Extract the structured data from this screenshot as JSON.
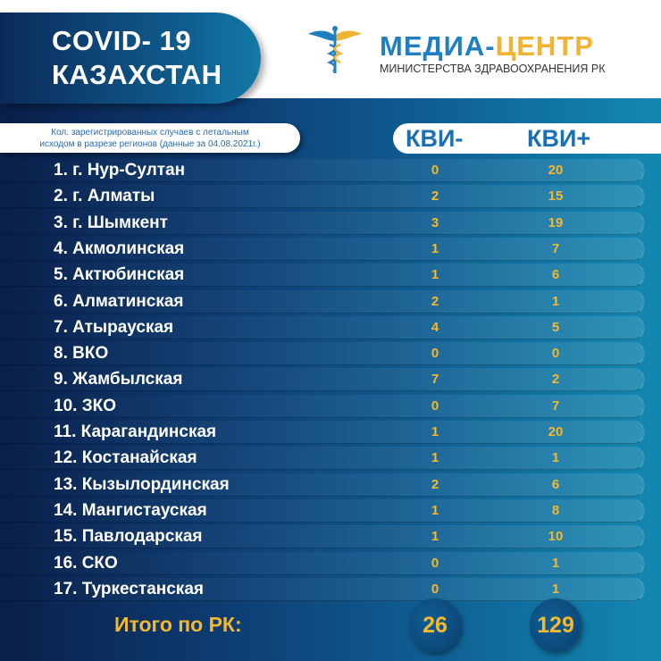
{
  "header": {
    "title_line1": "COVID- 19",
    "title_line2": "КАЗАХСТАН",
    "brand_part1": "МЕДИА-",
    "brand_part2": "ЦЕНТР",
    "ministry": "МИНИСТЕРСТВА ЗДРАВООХРАНЕНИЯ РК",
    "logo_icon": "caduceus-icon"
  },
  "subtitle_line1": "Кол. зарегистрированных случаев с летальным",
  "subtitle_line2": "исходом в разрезе регионов  (данные за 04.08.2021г.)",
  "columns": [
    "КВИ-",
    "КВИ+"
  ],
  "rows": [
    {
      "name": "1. г. Нур-Султан",
      "neg": "0",
      "pos": "20"
    },
    {
      "name": "2. г. Алматы",
      "neg": "2",
      "pos": "15"
    },
    {
      "name": "3. г. Шымкент",
      "neg": "3",
      "pos": "19"
    },
    {
      "name": "4. Акмолинская",
      "neg": "1",
      "pos": "7"
    },
    {
      "name": "5. Актюбинская",
      "neg": "1",
      "pos": "6"
    },
    {
      "name": "6. Алматинская",
      "neg": "2",
      "pos": "1"
    },
    {
      "name": "7. Атырауская",
      "neg": "4",
      "pos": "5"
    },
    {
      "name": "8. ВКО",
      "neg": "0",
      "pos": "0"
    },
    {
      "name": "9. Жамбылская",
      "neg": "7",
      "pos": "2"
    },
    {
      "name": "10. ЗКО",
      "neg": "0",
      "pos": "7"
    },
    {
      "name": "11. Карагандинская",
      "neg": "1",
      "pos": "20"
    },
    {
      "name": "12. Костанайская",
      "neg": "1",
      "pos": "1"
    },
    {
      "name": "13. Кызылординская",
      "neg": "2",
      "pos": "6"
    },
    {
      "name": "14. Мангистауская",
      "neg": "1",
      "pos": "8"
    },
    {
      "name": "15. Павлодарская",
      "neg": "1",
      "pos": "10"
    },
    {
      "name": "16. СКО",
      "neg": "0",
      "pos": "1"
    },
    {
      "name": "17. Туркестанская",
      "neg": "0",
      "pos": "1"
    }
  ],
  "total": {
    "label": "Итого по РК:",
    "neg": "26",
    "pos": "129"
  },
  "colors": {
    "accent": "#f5b82e",
    "brand_blue": "#1f7fc0",
    "navy": "#0a1f4a",
    "teal": "#1289b1"
  }
}
